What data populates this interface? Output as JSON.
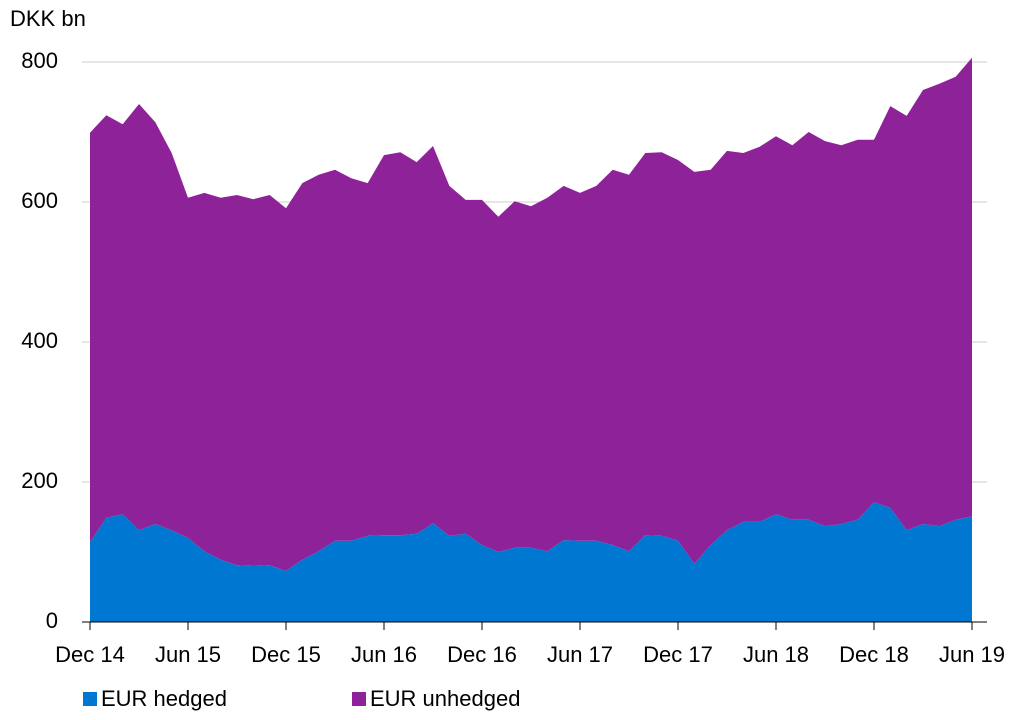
{
  "chart_data": {
    "type": "stacked_area",
    "y_label": "DKK bn",
    "categories": [
      "Dec 14",
      null,
      null,
      null,
      null,
      null,
      "Jun 15",
      null,
      null,
      null,
      null,
      null,
      "Dec 15",
      null,
      null,
      null,
      null,
      null,
      "Jun 16",
      null,
      null,
      null,
      null,
      null,
      "Dec 16",
      null,
      null,
      null,
      null,
      null,
      "Jun 17",
      null,
      null,
      null,
      null,
      null,
      "Dec 17",
      null,
      null,
      null,
      null,
      null,
      "Jun 18",
      null,
      null,
      null,
      null,
      null,
      "Dec 18",
      null,
      null,
      null,
      null,
      null,
      "Jun 19"
    ],
    "series": [
      {
        "name": "EUR hedged",
        "color": "#0078d2",
        "values": [
          114,
          149,
          154,
          131,
          140,
          131,
          120,
          101,
          89,
          81,
          80,
          81,
          73,
          89,
          101,
          116,
          116,
          123,
          124,
          124,
          126,
          141,
          123,
          126,
          110,
          100,
          106,
          106,
          101,
          117,
          116,
          116,
          110,
          101,
          124,
          123,
          116,
          83,
          110,
          131,
          143,
          143,
          154,
          146,
          146,
          137,
          140,
          146,
          171,
          163,
          131,
          140,
          137,
          146,
          151
        ]
      },
      {
        "name": "EUR unhedged",
        "color": "#8e2399",
        "values": [
          585,
          575,
          557,
          609,
          574,
          539,
          486,
          512,
          517,
          529,
          524,
          529,
          518,
          538,
          538,
          530,
          518,
          504,
          543,
          547,
          531,
          539,
          500,
          477,
          493,
          479,
          495,
          488,
          505,
          506,
          497,
          507,
          536,
          538,
          546,
          548,
          544,
          560,
          536,
          542,
          527,
          536,
          540,
          535,
          554,
          550,
          541,
          543,
          518,
          574,
          592,
          620,
          632,
          633,
          655
        ]
      }
    ],
    "ylim": [
      0,
      800
    ],
    "yticks": [
      0,
      200,
      400,
      600,
      800
    ],
    "grid": true,
    "legend": "bottom"
  }
}
